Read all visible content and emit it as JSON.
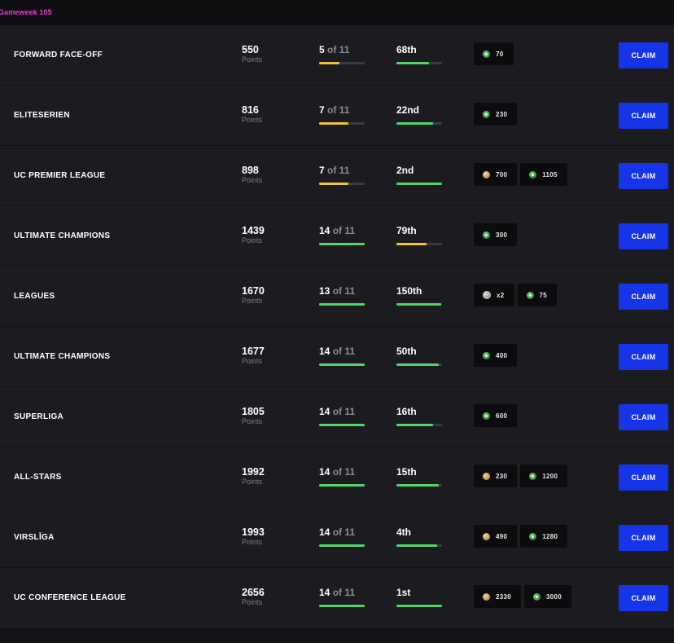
{
  "header": {
    "gameweek_label": "Gameweek 105"
  },
  "colors": {
    "accent_pink": "#e23fd1",
    "claim_blue": "#1634e8",
    "bar_green": "#52d46a",
    "bar_yellow": "#f0c23a"
  },
  "rows": [
    {
      "name": "FORWARD FACE-OFF",
      "points": "550",
      "points_label": "Points",
      "progress_done": "5",
      "progress_of": " of 11",
      "progress_fraction": 0.45,
      "progress_color": "yellow",
      "rank": "68th",
      "rank_fraction": 0.72,
      "rank_color": "green",
      "rewards": [
        {
          "icon": "green-coin-icon",
          "type": "green",
          "value": "70"
        }
      ],
      "claim_label": "CLAIM"
    },
    {
      "name": "ELITESERIEN",
      "points": "816",
      "points_label": "Points",
      "progress_done": "7",
      "progress_of": " of 11",
      "progress_fraction": 0.64,
      "progress_color": "yellow",
      "rank": "22nd",
      "rank_fraction": 0.8,
      "rank_color": "green",
      "rewards": [
        {
          "icon": "green-coin-icon",
          "type": "green",
          "value": "230"
        }
      ],
      "claim_label": "CLAIM"
    },
    {
      "name": "UC PREMIER LEAGUE",
      "points": "898",
      "points_label": "Points",
      "progress_done": "7",
      "progress_of": " of 11",
      "progress_fraction": 0.64,
      "progress_color": "yellow",
      "rank": "2nd",
      "rank_fraction": 1.0,
      "rank_color": "green",
      "rewards": [
        {
          "icon": "gold-coin-icon",
          "type": "gold",
          "value": "700"
        },
        {
          "icon": "green-coin-icon",
          "type": "green",
          "value": "1105"
        }
      ],
      "claim_label": "CLAIM"
    },
    {
      "name": "ULTIMATE CHAMPIONS",
      "points": "1439",
      "points_label": "Points",
      "progress_done": "14",
      "progress_of": " of 11",
      "progress_fraction": 1.0,
      "progress_color": "green",
      "rank": "79th",
      "rank_fraction": 0.66,
      "rank_color": "yellow",
      "rewards": [
        {
          "icon": "green-coin-icon",
          "type": "green",
          "value": "300"
        }
      ],
      "claim_label": "CLAIM"
    },
    {
      "name": "LEAGUES",
      "points": "1670",
      "points_label": "Points",
      "progress_done": "13",
      "progress_of": " of 11",
      "progress_fraction": 1.0,
      "progress_color": "green",
      "rank": "150th",
      "rank_fraction": 0.98,
      "rank_color": "green",
      "rewards": [
        {
          "icon": "silver-token-icon",
          "type": "grey",
          "value": "x2"
        },
        {
          "icon": "green-coin-icon",
          "type": "green",
          "value": "75"
        }
      ],
      "claim_label": "CLAIM"
    },
    {
      "name": "ULTIMATE CHAMPIONS",
      "points": "1677",
      "points_label": "Points",
      "progress_done": "14",
      "progress_of": " of 11",
      "progress_fraction": 1.0,
      "progress_color": "green",
      "rank": "50th",
      "rank_fraction": 0.93,
      "rank_color": "green",
      "rewards": [
        {
          "icon": "green-coin-icon",
          "type": "green",
          "value": "400"
        }
      ],
      "claim_label": "CLAIM"
    },
    {
      "name": "SUPERLIGA",
      "points": "1805",
      "points_label": "Points",
      "progress_done": "14",
      "progress_of": " of 11",
      "progress_fraction": 1.0,
      "progress_color": "green",
      "rank": "16th",
      "rank_fraction": 0.8,
      "rank_color": "green",
      "rewards": [
        {
          "icon": "green-coin-icon",
          "type": "green",
          "value": "600"
        }
      ],
      "claim_label": "CLAIM"
    },
    {
      "name": "ALL-STARS",
      "points": "1992",
      "points_label": "Points",
      "progress_done": "14",
      "progress_of": " of 11",
      "progress_fraction": 1.0,
      "progress_color": "green",
      "rank": "15th",
      "rank_fraction": 0.93,
      "rank_color": "green",
      "rewards": [
        {
          "icon": "gold-coin-icon",
          "type": "gold",
          "value": "230"
        },
        {
          "icon": "green-coin-icon",
          "type": "green",
          "value": "1200"
        }
      ],
      "claim_label": "CLAIM"
    },
    {
      "name": "VIRSLĪGA",
      "points": "1993",
      "points_label": "Points",
      "progress_done": "14",
      "progress_of": " of 11",
      "progress_fraction": 1.0,
      "progress_color": "green",
      "rank": "4th",
      "rank_fraction": 0.9,
      "rank_color": "green",
      "rewards": [
        {
          "icon": "gold-coin-icon",
          "type": "gold",
          "value": "490"
        },
        {
          "icon": "green-coin-icon",
          "type": "green",
          "value": "1280"
        }
      ],
      "claim_label": "CLAIM"
    },
    {
      "name": "UC CONFERENCE LEAGUE",
      "points": "2656",
      "points_label": "Points",
      "progress_done": "14",
      "progress_of": " of 11",
      "progress_fraction": 1.0,
      "progress_color": "green",
      "rank": "1st",
      "rank_fraction": 1.0,
      "rank_color": "green",
      "rewards": [
        {
          "icon": "gold-coin-icon",
          "type": "gold",
          "value": "2330"
        },
        {
          "icon": "green-coin-icon",
          "type": "green",
          "value": "3000"
        }
      ],
      "claim_label": "CLAIM"
    }
  ]
}
